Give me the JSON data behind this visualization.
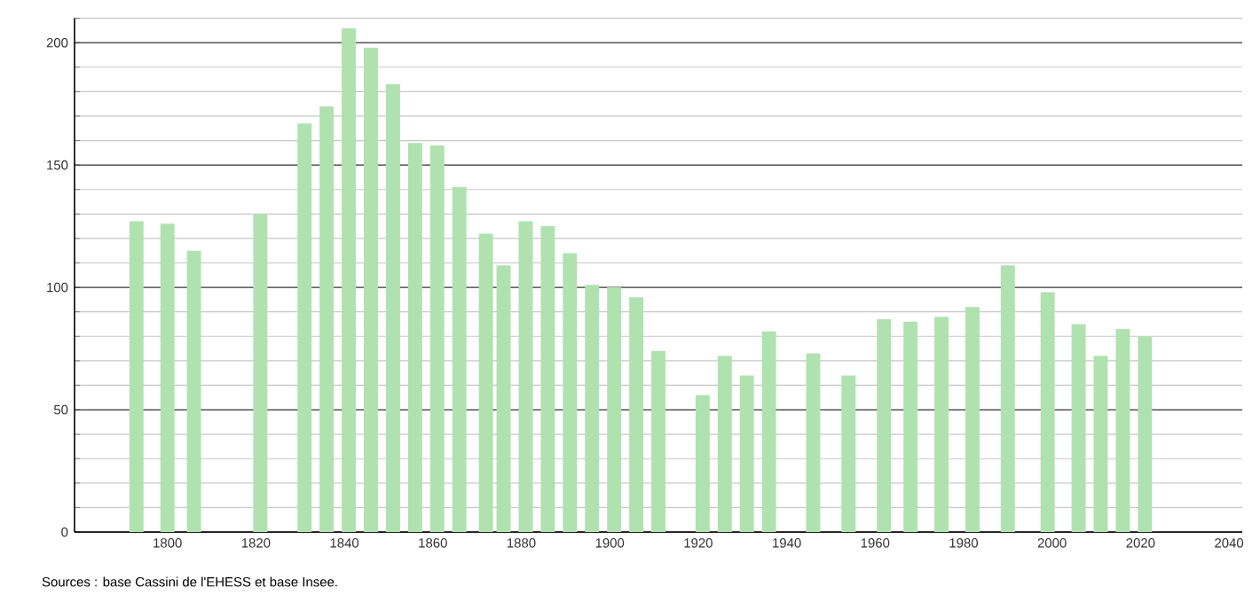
{
  "chart_data": {
    "type": "bar",
    "x": [
      1793,
      1800,
      1806,
      1821,
      1831,
      1836,
      1841,
      1846,
      1851,
      1856,
      1861,
      1866,
      1872,
      1876,
      1881,
      1886,
      1891,
      1896,
      1901,
      1906,
      1911,
      1921,
      1926,
      1931,
      1936,
      1946,
      1954,
      1962,
      1968,
      1975,
      1982,
      1990,
      1999,
      2006,
      2011,
      2016,
      2021
    ],
    "values": [
      127,
      126,
      115,
      130,
      167,
      174,
      206,
      198,
      183,
      159,
      158,
      141,
      122,
      109,
      127,
      125,
      114,
      101,
      100,
      96,
      74,
      56,
      72,
      64,
      82,
      73,
      64,
      87,
      86,
      88,
      92,
      109,
      98,
      85,
      72,
      83,
      80
    ],
    "color": "#b0e2b0",
    "xlim": [
      1779,
      2043
    ],
    "xticks": [
      1800,
      1820,
      1840,
      1860,
      1880,
      1900,
      1920,
      1940,
      1960,
      1980,
      2000,
      2020,
      2040
    ],
    "ylim": [
      0,
      210
    ],
    "yticks": [
      0,
      {
        "value": 10,
        "label": null
      },
      {
        "value": 20,
        "label": null
      },
      {
        "value": 30,
        "label": null
      },
      {
        "value": 40,
        "label": null
      },
      50,
      {
        "value": 60,
        "label": null
      },
      {
        "value": 70,
        "label": null
      },
      {
        "value": 80,
        "label": null
      },
      {
        "value": 90,
        "label": null
      },
      100,
      {
        "value": 110,
        "label": null
      },
      {
        "value": 120,
        "label": null
      },
      {
        "value": 130,
        "label": null
      },
      {
        "value": 140,
        "label": null
      },
      150,
      {
        "value": 160,
        "label": null
      },
      {
        "value": 170,
        "label": null
      },
      {
        "value": 180,
        "label": null
      },
      {
        "value": 190,
        "label": null
      },
      200,
      {
        "value": 210,
        "label": null
      }
    ],
    "grid": "y",
    "annotations": [
      "Sources : base Cassini de l'EHESS et base Insee."
    ]
  }
}
